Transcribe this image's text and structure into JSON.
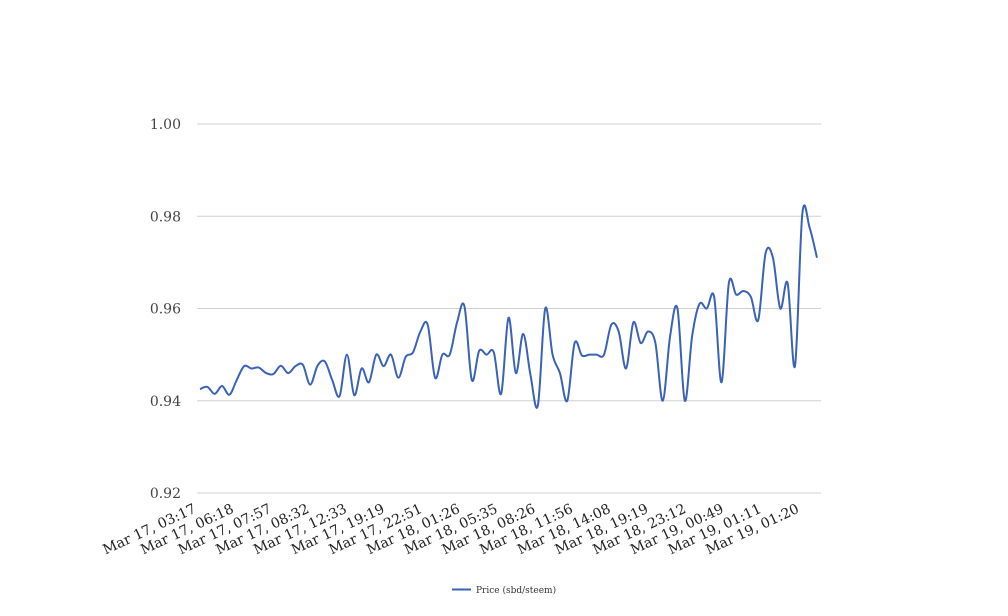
{
  "chart_data": {
    "type": "line",
    "title": "",
    "xlabel": "",
    "ylabel": "",
    "ylim": [
      0.92,
      1.0
    ],
    "yticks": [
      "0.92",
      "0.94",
      "0.96",
      "0.98",
      "1.00"
    ],
    "xtick_labels": [
      "Mar 17, 03:17",
      "Mar 17, 06:18",
      "Mar 17, 07:57",
      "Mar 17, 08:32",
      "Mar 17, 12:33",
      "Mar 17, 19:19",
      "Mar 17, 22:51",
      "Mar 18, 01:26",
      "Mar 18, 05:35",
      "Mar 18, 08:26",
      "Mar 18, 11:56",
      "Mar 18, 14:08",
      "Mar 18, 19:19",
      "Mar 18, 23:12",
      "Mar 19, 00:49",
      "Mar 19, 01:11",
      "Mar 19, 01:20"
    ],
    "grid": true,
    "legend_position": "bottom-center",
    "series": [
      {
        "name": "Price (sbd/steem)",
        "color": "#3a62b8",
        "values": [
          0.9425,
          0.943,
          0.9415,
          0.9432,
          0.9413,
          0.9445,
          0.9475,
          0.947,
          0.9472,
          0.946,
          0.9458,
          0.9476,
          0.946,
          0.9475,
          0.9478,
          0.9435,
          0.9476,
          0.9485,
          0.9445,
          0.941,
          0.95,
          0.9412,
          0.947,
          0.944,
          0.95,
          0.9475,
          0.95,
          0.945,
          0.9495,
          0.9505,
          0.955,
          0.9565,
          0.945,
          0.95,
          0.95,
          0.957,
          0.9605,
          0.9445,
          0.9508,
          0.95,
          0.9505,
          0.9415,
          0.958,
          0.946,
          0.9545,
          0.9455,
          0.939,
          0.96,
          0.95,
          0.946,
          0.94,
          0.9525,
          0.9498,
          0.95,
          0.95,
          0.95,
          0.9565,
          0.955,
          0.947,
          0.957,
          0.9525,
          0.955,
          0.9525,
          0.94,
          0.954,
          0.96,
          0.94,
          0.954,
          0.961,
          0.96,
          0.9625,
          0.944,
          0.9655,
          0.963,
          0.9638,
          0.9625,
          0.9575,
          0.972,
          0.971,
          0.96,
          0.9655,
          0.9475,
          0.9805,
          0.9775,
          0.971
        ]
      }
    ]
  }
}
